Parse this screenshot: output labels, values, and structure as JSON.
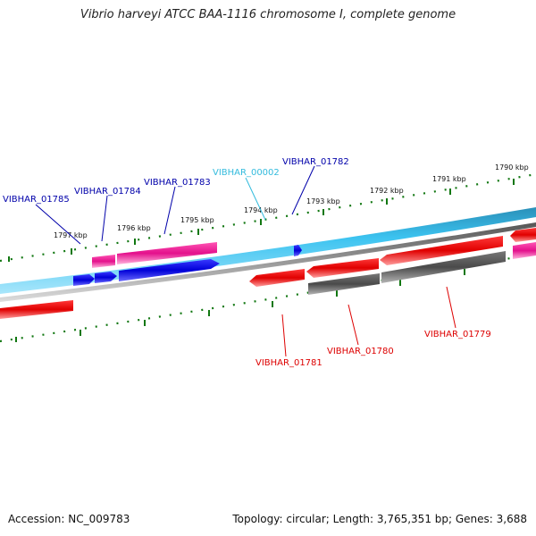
{
  "title": "Vibrio harveyi ATCC BAA-1116 chromosome I, complete genome",
  "footer": {
    "accession": "Accession: NC_009783",
    "stats": "Topology: circular; Length: 3,765,351 bp; Genes: 3,688"
  },
  "colors": {
    "forward_gene": "#0000dd",
    "forward_gene_light": "#e8138f",
    "reverse_gene": "#ee0000",
    "reverse_gene_dark": "#555555",
    "backbone_forward": "#33bbee",
    "backbone_reverse": "#888888",
    "tick": "#117711",
    "label_forward": "#0000aa",
    "label_other": "#33bbdd",
    "label_reverse": "#dd0000"
  },
  "ticks": [
    "1797 kbp",
    "1796 kbp",
    "1795 kbp",
    "1794 kbp",
    "1793 kbp",
    "1792 kbp",
    "1791 kbp",
    "1790 kbp"
  ],
  "genes": {
    "top": [
      {
        "label": "VIBHAR_01785",
        "color": "label_forward"
      },
      {
        "label": "VIBHAR_01784",
        "color": "label_forward"
      },
      {
        "label": "VIBHAR_01783",
        "color": "label_forward"
      },
      {
        "label": "VIBHAR_00002",
        "color": "label_other"
      },
      {
        "label": "VIBHAR_01782",
        "color": "label_forward"
      }
    ],
    "bottom": [
      {
        "label": "VIBHAR_01781",
        "color": "label_reverse"
      },
      {
        "label": "VIBHAR_01780",
        "color": "label_reverse"
      },
      {
        "label": "VIBHAR_01779",
        "color": "label_reverse"
      }
    ]
  }
}
